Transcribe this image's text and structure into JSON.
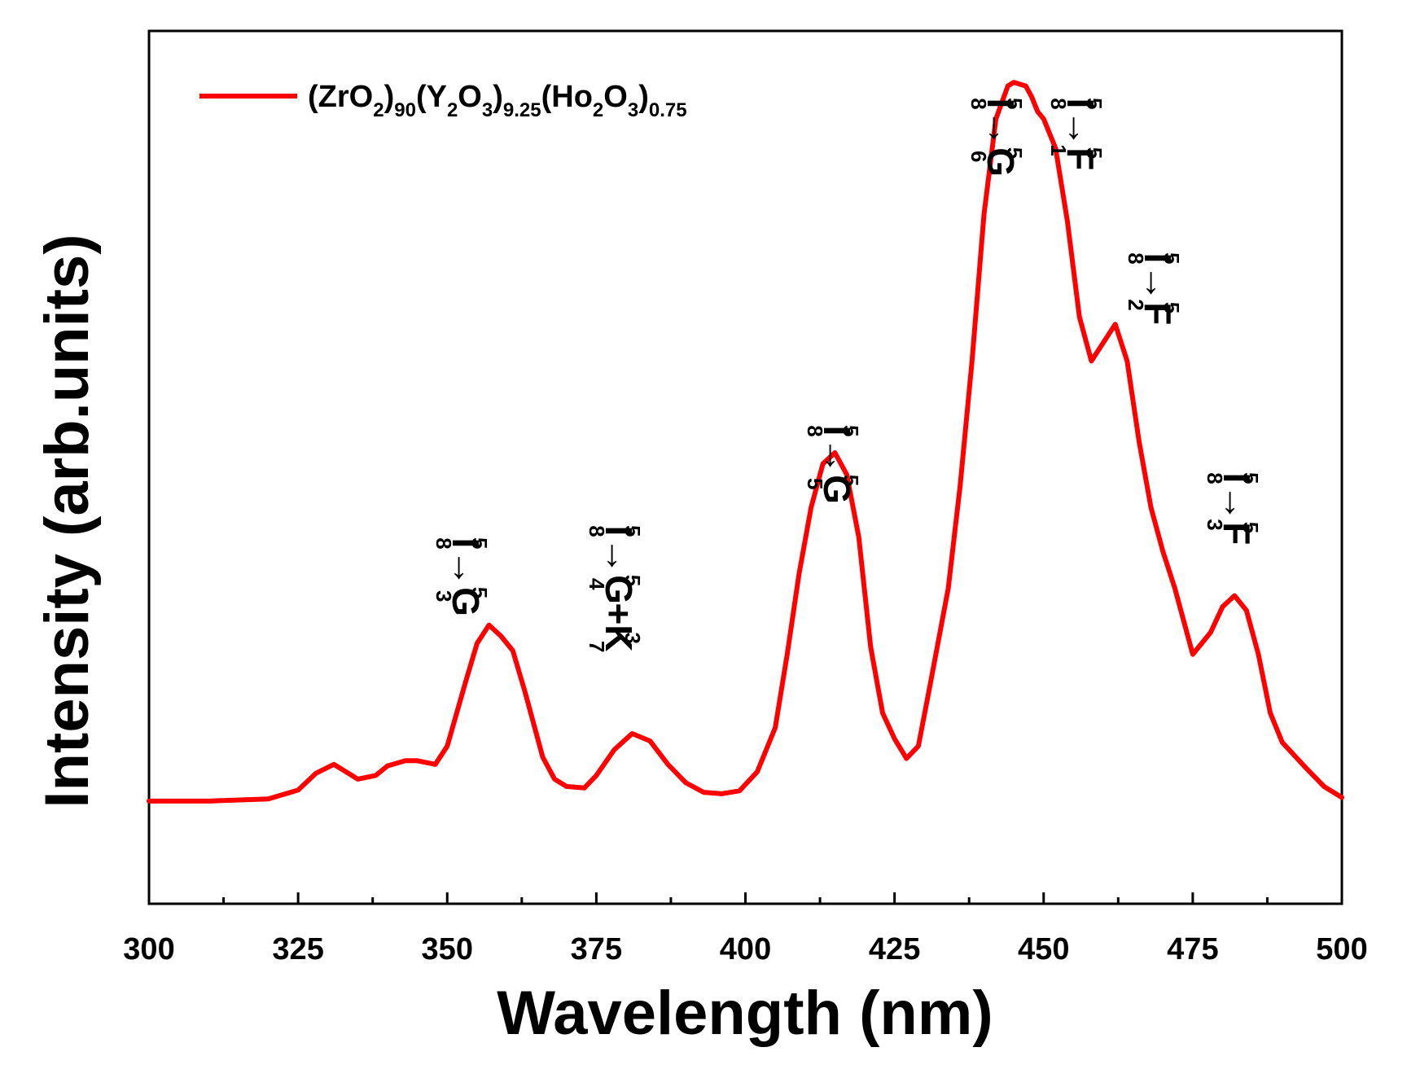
{
  "chart_data": {
    "type": "line",
    "xlabel": "Wavelength (nm)",
    "ylabel": "Intensity (arb.units)",
    "xlim": [
      300,
      500
    ],
    "ylim": [
      -0.14,
      1.05
    ],
    "xticks": [
      "300",
      "325",
      "350",
      "375",
      "400",
      "425",
      "450",
      "475",
      "500"
    ],
    "y_tick_labels_shown": false,
    "grid": false,
    "legend_position": "top-left",
    "colors": {
      "series": "#ff0000",
      "axes": "#000000",
      "background": "#ffffff"
    },
    "series": [
      {
        "name": "(ZrO2)90(Y2O3)9.25(Ho2O3)0.75",
        "legend_parts": {
          "p1": "(ZrO",
          "s1": "2",
          "p2": ")",
          "s2": "90",
          "p3": "(Y",
          "s3": "2",
          "p4": "O",
          "s4": "3",
          "p5": ")",
          "s5": "9.25",
          "p6": "(Ho",
          "s6": "2",
          "p7": "O",
          "s7": "3",
          "p8": ")",
          "s8": "0.75"
        },
        "x": [
          300,
          310,
          320,
          325,
          328,
          331,
          333,
          335,
          338,
          340,
          343,
          345,
          348,
          350,
          353,
          355,
          357,
          359,
          361,
          363,
          366,
          368,
          370,
          373,
          375,
          378,
          381,
          384,
          387,
          390,
          393,
          396,
          399,
          402,
          405,
          407,
          409,
          411,
          413,
          415,
          417,
          419,
          421,
          423,
          425,
          427,
          429,
          431,
          434,
          436,
          438,
          440,
          442,
          444,
          445,
          447,
          448,
          449,
          450,
          452,
          454,
          456,
          458,
          460,
          462,
          464,
          466,
          468,
          470,
          472,
          475,
          478,
          480,
          482,
          484,
          486,
          488,
          490,
          494,
          497,
          500
        ],
        "y": [
          0.0,
          0.0,
          0.003,
          0.015,
          0.038,
          0.05,
          0.04,
          0.03,
          0.035,
          0.048,
          0.055,
          0.055,
          0.05,
          0.075,
          0.16,
          0.215,
          0.24,
          0.225,
          0.205,
          0.15,
          0.06,
          0.03,
          0.02,
          0.018,
          0.035,
          0.07,
          0.092,
          0.082,
          0.05,
          0.025,
          0.012,
          0.01,
          0.014,
          0.04,
          0.1,
          0.2,
          0.31,
          0.4,
          0.46,
          0.475,
          0.445,
          0.36,
          0.21,
          0.12,
          0.085,
          0.058,
          0.075,
          0.16,
          0.29,
          0.43,
          0.6,
          0.8,
          0.93,
          0.975,
          0.98,
          0.975,
          0.96,
          0.94,
          0.93,
          0.89,
          0.79,
          0.66,
          0.6,
          0.625,
          0.65,
          0.6,
          0.49,
          0.4,
          0.34,
          0.29,
          0.2,
          0.23,
          0.265,
          0.28,
          0.26,
          0.2,
          0.12,
          0.08,
          0.045,
          0.02,
          0.005
        ]
      }
    ],
    "annotations": [
      {
        "id": "a1",
        "x": 356,
        "base": "I",
        "base_sup": "5",
        "base_sub": "8",
        "arrow": "→",
        "term": "G",
        "term_sup": "5",
        "term_sub": "3",
        "extra": "",
        "extra_sup": "",
        "extra_sub": ""
      },
      {
        "id": "a2",
        "x": 380,
        "base": "I",
        "base_sup": "5",
        "base_sub": "8",
        "arrow": "→",
        "term": "G",
        "term_sup": "5",
        "term_sub": "4",
        "extra": "+K",
        "extra_sup": "3",
        "extra_sub": "7"
      },
      {
        "id": "a3",
        "x": 415,
        "base": "I",
        "base_sup": "5",
        "base_sub": "8",
        "arrow": "→",
        "term": "G",
        "term_sup": "5",
        "term_sub": "5",
        "extra": "",
        "extra_sup": "",
        "extra_sub": ""
      },
      {
        "id": "a4",
        "x": 445,
        "base": "I",
        "base_sup": "5",
        "base_sub": "8",
        "arrow": "→",
        "term": "G",
        "term_sup": "5",
        "term_sub": "6",
        "extra": "",
        "extra_sup": "",
        "extra_sub": ""
      },
      {
        "id": "a5",
        "x": 455.5,
        "base": "I",
        "base_sup": "5",
        "base_sub": "8",
        "arrow": "→",
        "term": "F",
        "term_sup": "5",
        "term_sub": "1",
        "extra": "",
        "extra_sup": "",
        "extra_sub": ""
      },
      {
        "id": "a6",
        "x": 468,
        "base": "I",
        "base_sup": "5",
        "base_sub": "8",
        "arrow": "→",
        "term": "F",
        "term_sup": "5",
        "term_sub": "2",
        "extra": "",
        "extra_sup": "",
        "extra_sub": ""
      },
      {
        "id": "a7",
        "x": 482,
        "base": "I",
        "base_sup": "5",
        "base_sub": "8",
        "arrow": "→",
        "term": "F",
        "term_sup": "5",
        "term_sub": "3",
        "extra": "",
        "extra_sup": "",
        "extra_sub": ""
      }
    ]
  }
}
